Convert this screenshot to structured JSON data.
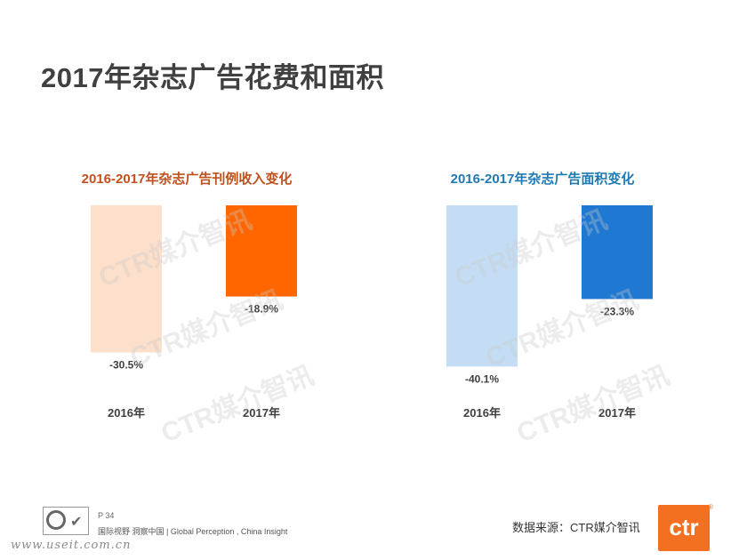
{
  "title": "2017年杂志广告花费和面积",
  "watermark_text": "CTR媒介智讯",
  "chart_data": [
    {
      "type": "bar",
      "title": "2016-2017年杂志广告刊例收入变化",
      "title_color": "#c0501d",
      "categories": [
        "2016年",
        "2017年"
      ],
      "values": [
        -30.5,
        -18.9
      ],
      "value_labels": [
        "-30.5%",
        "-18.9%"
      ],
      "colors": [
        "#fde0cc",
        "#ff6600"
      ],
      "ylim": [
        -35,
        0
      ],
      "grid": false
    },
    {
      "type": "bar",
      "title": "2016-2017年杂志广告面积变化",
      "title_color": "#1f7ab3",
      "categories": [
        "2016年",
        "2017年"
      ],
      "values": [
        -40.1,
        -23.3
      ],
      "value_labels": [
        "-40.1%",
        "-23.3%"
      ],
      "colors": [
        "#c4ddf5",
        "#1f78d1"
      ],
      "ylim": [
        -42,
        0
      ],
      "grid": false
    }
  ],
  "footer": {
    "page": "P 34",
    "slogan": "国际视野 洞察中国 | Global Perception , China Insight",
    "url": "www.useit.com.cn",
    "source": "数据来源：CTR媒介智讯",
    "logo_text": "ctr",
    "registered": "®"
  }
}
